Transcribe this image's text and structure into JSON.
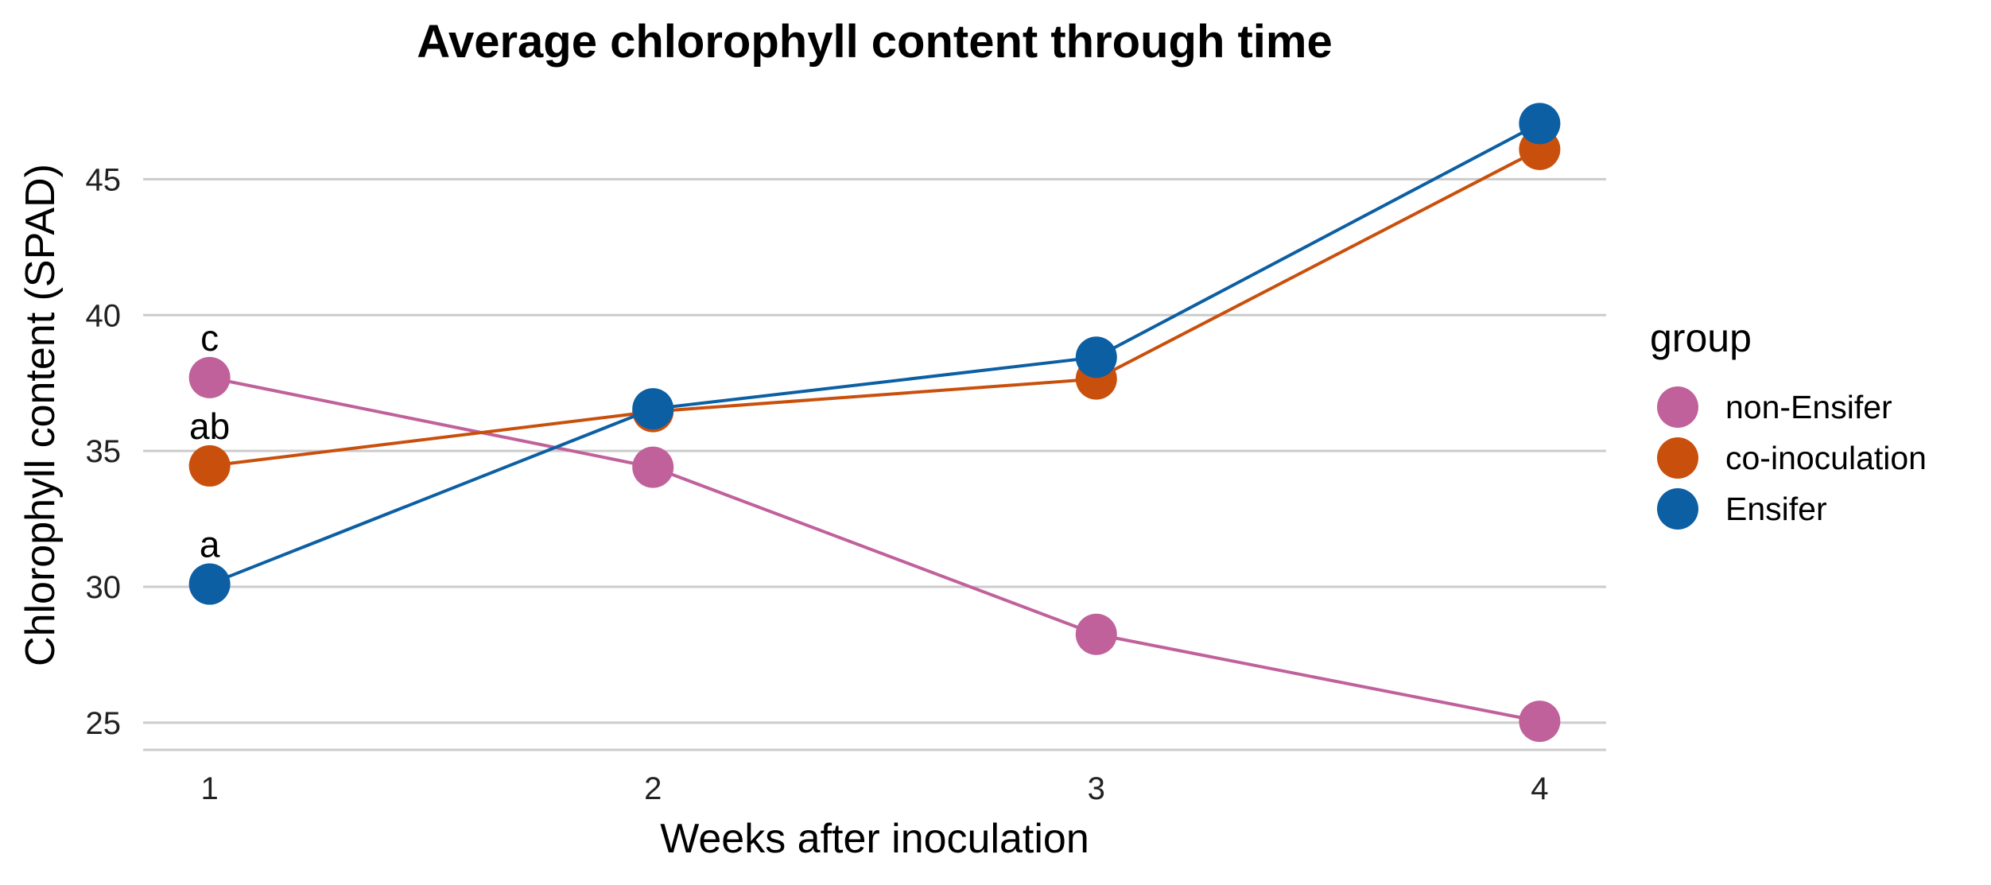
{
  "chart_data": {
    "type": "line",
    "title": "Average chlorophyll content through time",
    "xlabel": "Weeks after inoculation",
    "ylabel": "Chlorophyll content (SPAD)",
    "x": [
      1,
      2,
      3,
      4
    ],
    "xlim": [
      0.85,
      4.15
    ],
    "ylim": [
      24,
      47.5
    ],
    "yticks": [
      25,
      30,
      35,
      40,
      45
    ],
    "grid": "horizontal",
    "legend": {
      "title": "group",
      "position": "right"
    },
    "series": [
      {
        "name": "non-Ensifer",
        "color": "#C0619B",
        "values": [
          37.7,
          34.4,
          28.25,
          25.05
        ]
      },
      {
        "name": "co-inoculation",
        "color": "#C9500C",
        "values": [
          34.45,
          36.45,
          37.65,
          46.1
        ]
      },
      {
        "name": "Ensifer",
        "color": "#0C5FA3",
        "values": [
          30.1,
          36.55,
          38.45,
          47.05
        ]
      }
    ],
    "annotations": [
      {
        "text": "c",
        "x": 1,
        "y": 37.7
      },
      {
        "text": "ab",
        "x": 1,
        "y": 34.45
      },
      {
        "text": "a",
        "x": 1,
        "y": 30.1
      }
    ]
  }
}
